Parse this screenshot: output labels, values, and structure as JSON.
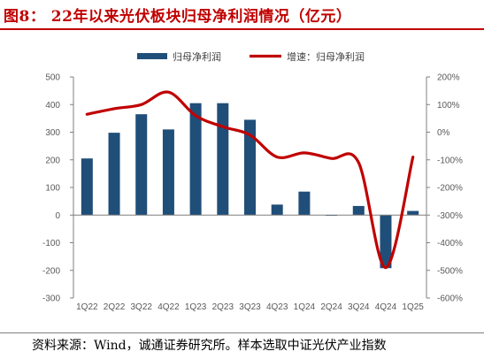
{
  "figure": {
    "title": "图8：  22年以来光伏板块归母净利润情况（亿元）",
    "source": "资料来源：Wind，诚通证券研究所。样本选取中证光伏产业指数"
  },
  "colors": {
    "bar": "#1f4e79",
    "line": "#c00000",
    "title": "#c00000"
  },
  "chart_data": {
    "type": "bar",
    "categories": [
      "1Q22",
      "2Q22",
      "3Q22",
      "4Q22",
      "1Q23",
      "2Q23",
      "3Q23",
      "4Q23",
      "1Q24",
      "2Q24",
      "3Q24",
      "4Q24",
      "1Q25"
    ],
    "series": [
      {
        "name": "归母净利润",
        "type": "bar",
        "axis": "left",
        "values": [
          205,
          298,
          365,
          310,
          405,
          405,
          345,
          38,
          85,
          -2,
          33,
          -192,
          15
        ]
      },
      {
        "name": "增速：归母净利润",
        "type": "line",
        "axis": "right",
        "values": [
          65,
          85,
          100,
          145,
          60,
          20,
          -10,
          -90,
          -75,
          -95,
          -110,
          -490,
          -90
        ]
      }
    ],
    "y_left": {
      "min": -300,
      "max": 500,
      "ticks": [
        "500",
        "400",
        "300",
        "200",
        "100",
        "0",
        "-100",
        "-200",
        "-300"
      ]
    },
    "y_right": {
      "min": -600,
      "max": 200,
      "ticks": [
        "200%",
        "100%",
        "0%",
        "-100%",
        "-200%",
        "-300%",
        "-400%",
        "-500%",
        "-600%"
      ]
    },
    "legend": [
      "归母净利润",
      "增速：归母净利润"
    ],
    "legend_position": "top",
    "grid": false
  }
}
